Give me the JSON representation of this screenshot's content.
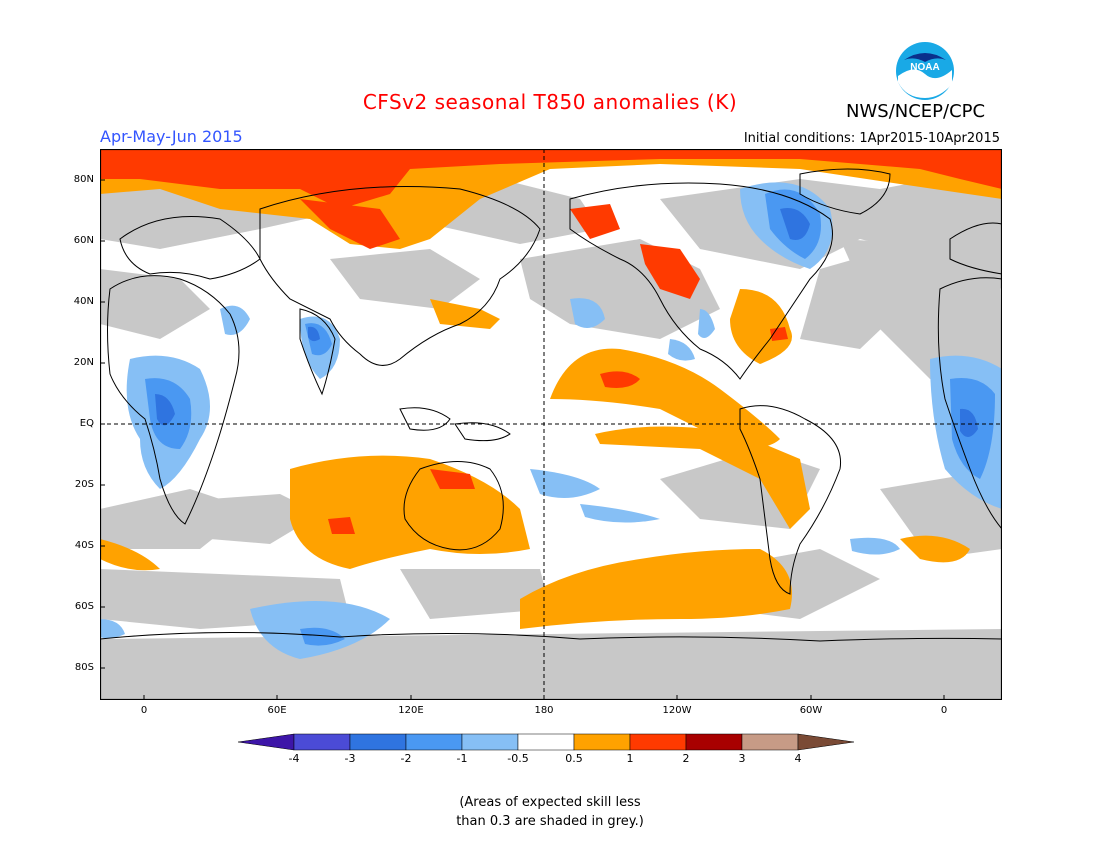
{
  "header": {
    "title": "CFSv2 seasonal T850 anomalies (K)",
    "season": "Apr-May-Jun 2015",
    "initial_conditions": "Initial conditions: 1Apr2015-10Apr2015",
    "agency": "NWS/NCEP/CPC",
    "logo_text": "NOAA"
  },
  "map": {
    "lat_labels": [
      "80N",
      "60N",
      "40N",
      "20N",
      "EQ",
      "20S",
      "40S",
      "60S",
      "80S"
    ],
    "lon_labels": [
      "0",
      "60E",
      "120E",
      "180",
      "120W",
      "60W",
      "0"
    ]
  },
  "colorbar": {
    "labels": [
      "-4",
      "-3",
      "-2",
      "-1",
      "-0.5",
      "0.5",
      "1",
      "2",
      "3",
      "4"
    ],
    "colors": [
      "#3d15a8",
      "#4b4bd6",
      "#2f74e0",
      "#4a98f2",
      "#86bff5",
      "#ffffff",
      "#ffa200",
      "#ff3a00",
      "#a80000",
      "#c79b86",
      "#7a4a35"
    ]
  },
  "footnote": "(Areas of expected skill less\nthan 0.3 are shaded in grey.)",
  "colors": {
    "grey_skill": "#c8c8c8",
    "title": "#ff0000",
    "season": "#3355ff"
  }
}
